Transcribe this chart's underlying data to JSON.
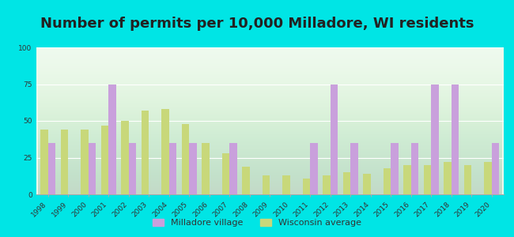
{
  "title": "Number of permits per 10,000 Milladore, WI residents",
  "years": [
    1998,
    1999,
    2000,
    2001,
    2002,
    2003,
    2004,
    2005,
    2006,
    2007,
    2008,
    2009,
    2010,
    2011,
    2012,
    2013,
    2014,
    2015,
    2016,
    2017,
    2018,
    2019,
    2020
  ],
  "milladore": [
    35,
    0,
    35,
    75,
    35,
    0,
    35,
    35,
    0,
    35,
    0,
    0,
    0,
    35,
    75,
    35,
    0,
    35,
    35,
    75,
    75,
    0,
    35
  ],
  "wisconsin": [
    44,
    44,
    44,
    47,
    50,
    57,
    58,
    48,
    35,
    28,
    19,
    13,
    13,
    11,
    13,
    15,
    14,
    18,
    20,
    20,
    22,
    20,
    22
  ],
  "milladore_color": "#c9a0dc",
  "wisconsin_color": "#c8d87a",
  "outer_bg": "#00e5e5",
  "plot_bg_top": "#d6f0d0",
  "plot_bg_bottom": "#edfaed",
  "ylim": [
    0,
    100
  ],
  "yticks": [
    0,
    25,
    50,
    75,
    100
  ],
  "bar_width": 0.38,
  "title_fontsize": 13,
  "tick_fontsize": 6.5,
  "legend_milladore": "Milladore village",
  "legend_wisconsin": "Wisconsin average"
}
